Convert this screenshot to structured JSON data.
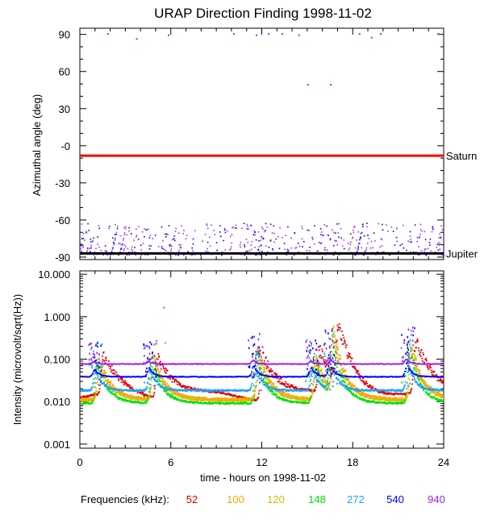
{
  "chart_data": {
    "type": "scatter",
    "title": "URAP Direction Finding  1998-11-02",
    "xlabel": "time - hours on 1998-11-02",
    "xlim": [
      0,
      24
    ],
    "xticks": [
      0,
      6,
      12,
      18,
      24
    ],
    "xtick_labels": [
      "0",
      "6",
      "12",
      "18",
      "24"
    ],
    "grid": false,
    "panels": [
      {
        "id": "azimuth",
        "ylabel": "Azimuthal angle (deg)",
        "ylim": [
          -92,
          95
        ],
        "yticks": [
          90,
          60,
          30,
          0,
          -30,
          -60,
          -90
        ],
        "ytick_labels": [
          "90",
          "60",
          "30",
          "-0",
          "-30",
          "-60",
          "-90"
        ],
        "reference_lines": [
          {
            "label": "Saturn",
            "y": -8,
            "color": "#ff0000"
          },
          {
            "label": "Jupiter",
            "y": -87,
            "color": "#000000"
          }
        ],
        "series": [
          {
            "color": "#9b30ff",
            "scatter_band_y": [
              -88,
              -62
            ],
            "top_points": [
              {
                "x": 1.8,
                "y": 91
              },
              {
                "x": 3.7,
                "y": 87
              },
              {
                "x": 5.8,
                "y": 90
              },
              {
                "x": 10.1,
                "y": 91
              },
              {
                "x": 11.6,
                "y": 90
              },
              {
                "x": 12.4,
                "y": 91
              },
              {
                "x": 13.3,
                "y": 91
              },
              {
                "x": 14.4,
                "y": 90
              },
              {
                "x": 18.4,
                "y": 91
              },
              {
                "x": 19.2,
                "y": 88
              },
              {
                "x": 19.8,
                "y": 91
              },
              {
                "x": 23.6,
                "y": 91
              },
              {
                "x": 15.0,
                "y": 50
              },
              {
                "x": 16.5,
                "y": 50
              }
            ]
          }
        ]
      },
      {
        "id": "intensity",
        "ylabel": "Intensity (microvolt/sqrt(Hz))",
        "yscale": "log",
        "ylim": [
          0.0008,
          12
        ],
        "yticks": [
          10,
          1,
          0.1,
          0.01,
          0.001
        ],
        "ytick_labels": [
          "10.000",
          "1.000",
          "0.100",
          "0.010",
          "0.001"
        ],
        "series": [
          {
            "name": "52",
            "color": "#e00000",
            "baseline": 0.013
          },
          {
            "name": "100",
            "color": "#ffa500",
            "baseline": 0.012
          },
          {
            "name": "120",
            "color": "#d9b800",
            "baseline": 0.011
          },
          {
            "name": "148",
            "color": "#00e000",
            "baseline": 0.0095
          },
          {
            "name": "272",
            "color": "#1e9fff",
            "baseline": 0.019
          },
          {
            "name": "540",
            "color": "#0000ff",
            "baseline": 0.04
          },
          {
            "name": "940",
            "color": "#a020f0",
            "baseline": 0.08
          }
        ],
        "bursts": [
          {
            "x": 1.0,
            "peak": 0.13
          },
          {
            "x": 4.6,
            "peak": 0.15
          },
          {
            "x": 11.5,
            "peak": 0.22
          },
          {
            "x": 15.3,
            "peak": 0.15
          },
          {
            "x": 16.5,
            "peak": 0.35
          },
          {
            "x": 21.6,
            "peak": 0.3
          }
        ],
        "outliers": [
          {
            "x": 5.5,
            "y": 1.7,
            "color": "#a020f0"
          },
          {
            "x": 5.6,
            "y": 0.25,
            "color": "#00e000"
          }
        ]
      }
    ],
    "legend": {
      "label": "Frequencies (kHz):",
      "placement": "bottom"
    }
  }
}
